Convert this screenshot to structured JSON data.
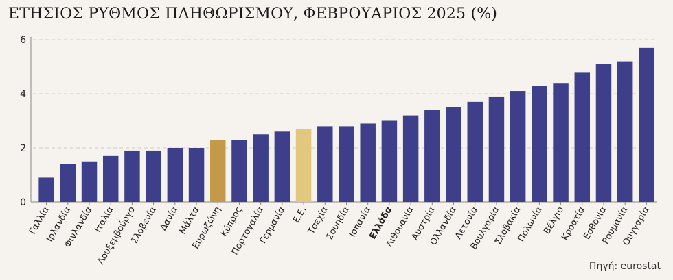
{
  "title": "ΕΤΗΣΙΟΣ ΡΥΘΜΟΣ ΠΛΗΘΩΡΙΣΜΟΥ, ΦΕΒΡΟΥΑΡΙΟΣ 2025 (%)",
  "source": "Πηγή: eurostat",
  "chart_data": {
    "type": "bar",
    "title": "ΕΤΗΣΙΟΣ ΡΥΘΜΟΣ ΠΛΗΘΩΡΙΣΜΟΥ, ΦΕΒΡΟΥΑΡΙΟΣ 2025 (%)",
    "xlabel": "",
    "ylabel": "",
    "ylim": [
      0,
      6
    ],
    "yticks": [
      0,
      2,
      4,
      6
    ],
    "grid": true,
    "categories": [
      "Γαλλία",
      "Ιρλανδία",
      "Φινλανδία",
      "Ιταλία",
      "Λουξεμβούργο",
      "Σλοβενία",
      "Δανία",
      "Μάλτα",
      "Ευρωζώνη",
      "Κύπρος",
      "Πορτογαλία",
      "Γερμανία",
      "Ε.Ε.",
      "Τσεχία",
      "Σουηδία",
      "Ισπανία",
      "Ελλάδα",
      "Λιθουανία",
      "Αυστρία",
      "Ολλανδία",
      "Λετονία",
      "Βουλγαρία",
      "Σλοβακία",
      "Πολωνία",
      "Βέλγιο",
      "Κροατία",
      "Εσθονία",
      "Ρουμανία",
      "Ουγγαρία"
    ],
    "values": [
      0.9,
      1.4,
      1.5,
      1.7,
      1.9,
      1.9,
      2.0,
      2.0,
      2.3,
      2.3,
      2.5,
      2.6,
      2.7,
      2.8,
      2.8,
      2.9,
      3.0,
      3.2,
      3.4,
      3.5,
      3.7,
      3.9,
      4.1,
      4.3,
      4.4,
      4.8,
      5.1,
      5.2,
      5.7
    ],
    "bold_category": "Ελλάδα",
    "colors": {
      "default": "#3d3f8a",
      "Ευρωζώνη": "#c49a4a",
      "Ε.Ε.": "#e2c87e",
      "grid": "#cfcac6",
      "axis": "#888888",
      "text": "#222222"
    }
  }
}
